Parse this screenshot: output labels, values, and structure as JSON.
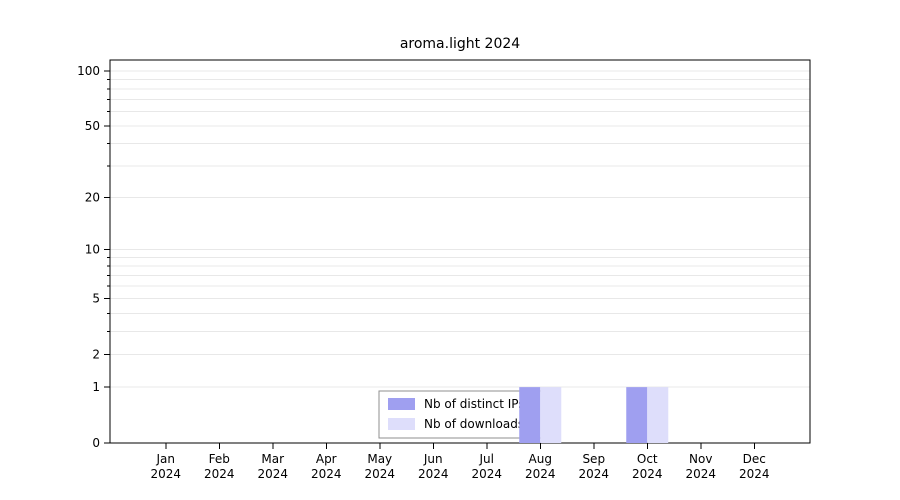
{
  "chart_data": {
    "type": "bar",
    "title": "aroma.light 2024",
    "year_label": "2024",
    "categories": [
      "Jan",
      "Feb",
      "Mar",
      "Apr",
      "May",
      "Jun",
      "Jul",
      "Aug",
      "Sep",
      "Oct",
      "Nov",
      "Dec"
    ],
    "series": [
      {
        "name": "Nb of distinct IPs",
        "color": "#9f9ff0",
        "values": [
          0,
          0,
          0,
          0,
          0,
          0,
          0,
          1,
          0,
          1,
          0,
          0
        ]
      },
      {
        "name": "Nb of downloads",
        "color": "#dedefb",
        "values": [
          0,
          0,
          0,
          0,
          0,
          0,
          0,
          1,
          0,
          1,
          0,
          0
        ]
      }
    ],
    "yticks": [
      0,
      1,
      2,
      5,
      10,
      20,
      50,
      100
    ],
    "ylim": [
      0,
      100
    ],
    "yscale": "log1p",
    "grid": true,
    "legend_position": "bottom-center",
    "xlabel": "",
    "ylabel": ""
  },
  "colors": {
    "grid": "#e8e8e8",
    "axis": "#000000",
    "legend_border": "#8f8f8f",
    "background": "#ffffff"
  }
}
